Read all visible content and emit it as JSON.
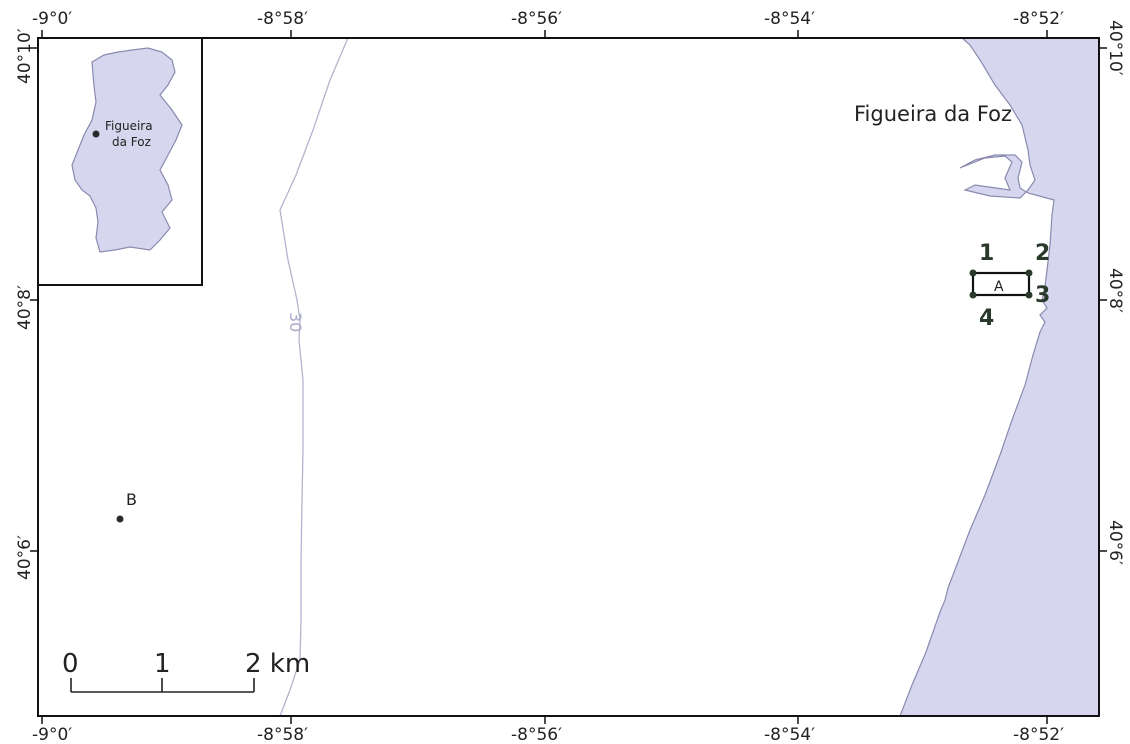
{
  "map": {
    "town_label": "Figueira da Foz",
    "contour_label": "30",
    "inset": {
      "label_line1": "Figueira",
      "label_line2": "da Foz"
    },
    "top_ticks": [
      "-9°0′",
      "-8°58′",
      "-8°56′",
      "-8°54′",
      "-8°52′"
    ],
    "bottom_ticks": [
      "-9°0′",
      "-8°58′",
      "-8°56′",
      "-8°54′",
      "-8°52′"
    ],
    "left_ticks": [
      "40°10′",
      "40°8′",
      "40°6′"
    ],
    "right_ticks": [
      "40°10′",
      "40°8′",
      "40°6′"
    ],
    "area_a": {
      "label": "A",
      "corners": [
        "1",
        "2",
        "3",
        "4"
      ]
    },
    "point_b": {
      "label": "B"
    },
    "scale_bar": {
      "labels": [
        "0",
        "1",
        "2 km"
      ]
    },
    "colors": {
      "land": "#d6d6ee",
      "coast": "#8a8ab0",
      "contour": "#b4b4d0",
      "frame": "#111111"
    }
  }
}
